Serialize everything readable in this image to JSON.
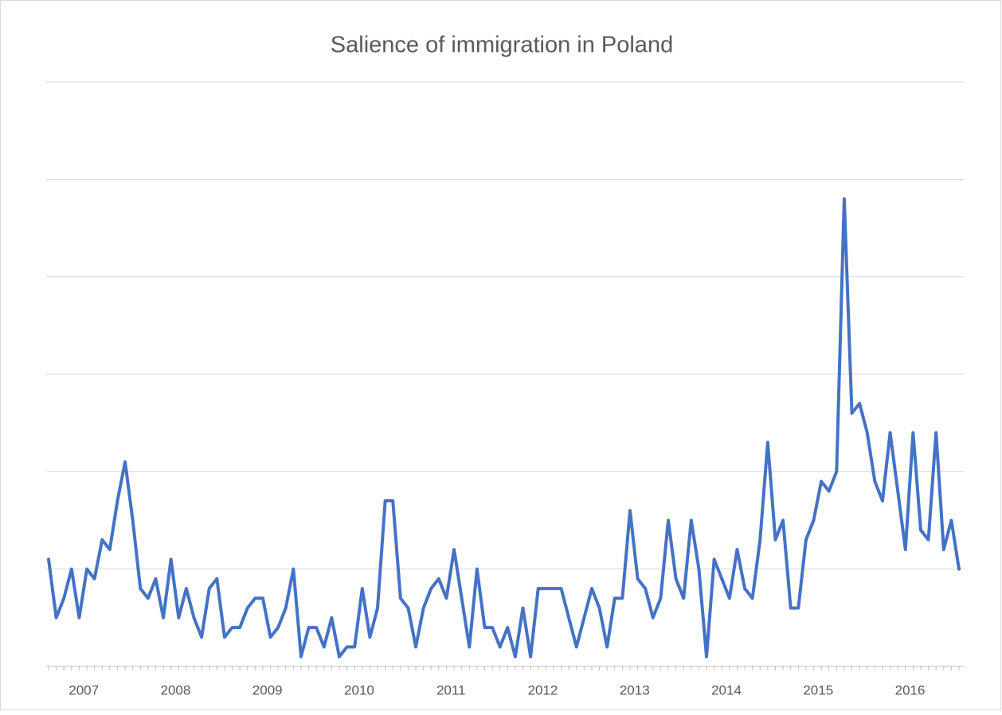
{
  "chart_data": {
    "type": "line",
    "title": "Salience of immigration in Poland",
    "year_labels": [
      "2007",
      "2008",
      "2009",
      "2010",
      "2011",
      "2012",
      "2013",
      "2014",
      "2015",
      "2016"
    ],
    "values": [
      1.1,
      0.5,
      0.7,
      1.0,
      0.5,
      1.0,
      0.9,
      1.3,
      1.2,
      1.7,
      2.1,
      1.5,
      0.8,
      0.7,
      0.9,
      0.5,
      1.1,
      0.5,
      0.8,
      0.5,
      0.3,
      0.8,
      0.9,
      0.3,
      0.4,
      0.4,
      0.6,
      0.7,
      0.7,
      0.3,
      0.4,
      0.6,
      1.0,
      0.1,
      0.4,
      0.4,
      0.2,
      0.5,
      0.1,
      0.2,
      0.2,
      0.8,
      0.3,
      0.6,
      1.7,
      1.7,
      0.7,
      0.6,
      0.2,
      0.6,
      0.8,
      0.9,
      0.7,
      1.2,
      0.7,
      0.2,
      1.0,
      0.4,
      0.4,
      0.2,
      0.4,
      0.1,
      0.6,
      0.1,
      0.8,
      0.8,
      0.8,
      0.8,
      0.5,
      0.2,
      0.5,
      0.8,
      0.6,
      0.2,
      0.7,
      0.7,
      1.6,
      0.9,
      0.8,
      0.5,
      0.7,
      1.5,
      0.9,
      0.7,
      1.5,
      1.0,
      0.1,
      1.1,
      0.9,
      0.7,
      1.2,
      0.8,
      0.7,
      1.3,
      2.3,
      1.3,
      1.5,
      0.6,
      0.6,
      1.3,
      1.5,
      1.9,
      1.8,
      2.0,
      4.8,
      2.6,
      2.7,
      2.4,
      1.9,
      1.7,
      2.4,
      1.8,
      1.2,
      2.4,
      1.4,
      1.3,
      2.4,
      1.2,
      1.5,
      1.0
    ],
    "color": "#4472c4",
    "ylim": [
      0,
      6
    ],
    "yticks": [
      0,
      1,
      2,
      3,
      4,
      5,
      6
    ],
    "grid": true
  }
}
